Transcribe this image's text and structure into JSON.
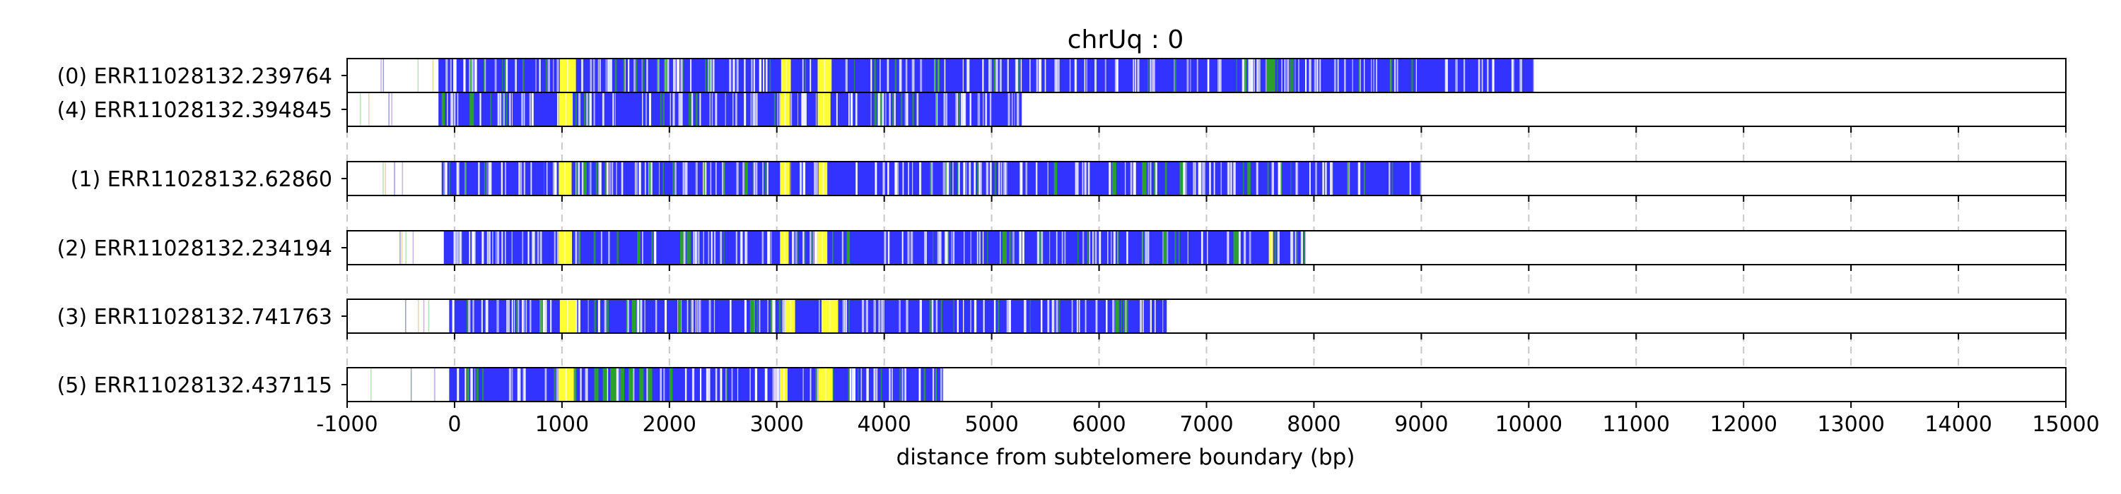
{
  "chart_data": {
    "type": "bar",
    "title": "chrUq : 0",
    "xlabel": "distance from subtelomere boundary (bp)",
    "xlim": [
      -1000,
      15000
    ],
    "xticks": [
      -1000,
      0,
      1000,
      2000,
      3000,
      4000,
      5000,
      6000,
      7000,
      8000,
      9000,
      10000,
      11000,
      12000,
      13000,
      14000,
      15000
    ],
    "grid": "vertical dashed",
    "colors": {
      "main": "#3333ff",
      "yellow": "#ffff33",
      "green": "#2ca02c",
      "white": "#ffffff"
    },
    "groups": [
      {
        "reads": [
          {
            "label": "(0) ERR11028132.239764",
            "start": -1000,
            "end": 10050,
            "coverage_start": -150,
            "yellow": [
              [
                980,
                1130
              ],
              [
                3040,
                3130
              ],
              [
                3380,
                3510
              ]
            ],
            "green": [
              [
                7560,
                7640
              ]
            ]
          },
          {
            "label": "(4) ERR11028132.394845",
            "start": -1000,
            "end": 5280,
            "coverage_start": -150,
            "yellow": [
              [
                970,
                1100
              ],
              [
                3030,
                3120
              ],
              [
                3380,
                3500
              ]
            ],
            "green": [
              [
                -120,
                -90
              ],
              [
                140,
                180
              ]
            ]
          }
        ]
      },
      {
        "reads": [
          {
            "label": "(1) ERR11028132.62860",
            "start": -1000,
            "end": 9000,
            "coverage_start": -120,
            "yellow": [
              [
                970,
                1090
              ],
              [
                3030,
                3120
              ],
              [
                3390,
                3470
              ]
            ],
            "green": [
              [
                1200,
                1230
              ],
              [
                2700,
                2730
              ],
              [
                5580,
                5610
              ],
              [
                6120,
                6160
              ],
              [
                6400,
                6440
              ],
              [
                6750,
                6780
              ],
              [
                7380,
                7410
              ]
            ]
          }
        ]
      },
      {
        "reads": [
          {
            "label": "(2) ERR11028132.234194",
            "start": -1000,
            "end": 7920,
            "coverage_start": -100,
            "yellow": [
              [
                970,
                1090
              ],
              [
                3030,
                3110
              ],
              [
                3380,
                3470
              ],
              [
                7580,
                7620
              ]
            ],
            "green": [
              [
                1700,
                1730
              ],
              [
                2100,
                2130
              ],
              [
                3650,
                3680
              ],
              [
                5100,
                5140
              ],
              [
                6600,
                6630
              ],
              [
                7250,
                7300
              ]
            ]
          }
        ]
      },
      {
        "reads": [
          {
            "label": "(3) ERR11028132.741763",
            "start": -1000,
            "end": 6630,
            "coverage_start": -50,
            "yellow": [
              [
                980,
                1130
              ],
              [
                3080,
                3170
              ],
              [
                3420,
                3570
              ]
            ],
            "green": [
              [
                1650,
                1690
              ],
              [
                2080,
                2110
              ],
              [
                2750,
                2790
              ],
              [
                6150,
                6180
              ]
            ]
          }
        ]
      },
      {
        "reads": [
          {
            "label": "(5) ERR11028132.437115",
            "start": -1000,
            "end": 4550,
            "coverage_start": -50,
            "yellow": [
              [
                970,
                1110
              ],
              [
                3030,
                3100
              ],
              [
                3390,
                3520
              ]
            ],
            "green": [
              [
                1300,
                1340
              ],
              [
                1380,
                1420
              ],
              [
                1450,
                1500
              ],
              [
                1540,
                1580
              ],
              [
                1620,
                1660
              ],
              [
                1720,
                1760
              ],
              [
                1800,
                1840
              ],
              [
                2000,
                2030
              ]
            ]
          }
        ]
      }
    ]
  }
}
